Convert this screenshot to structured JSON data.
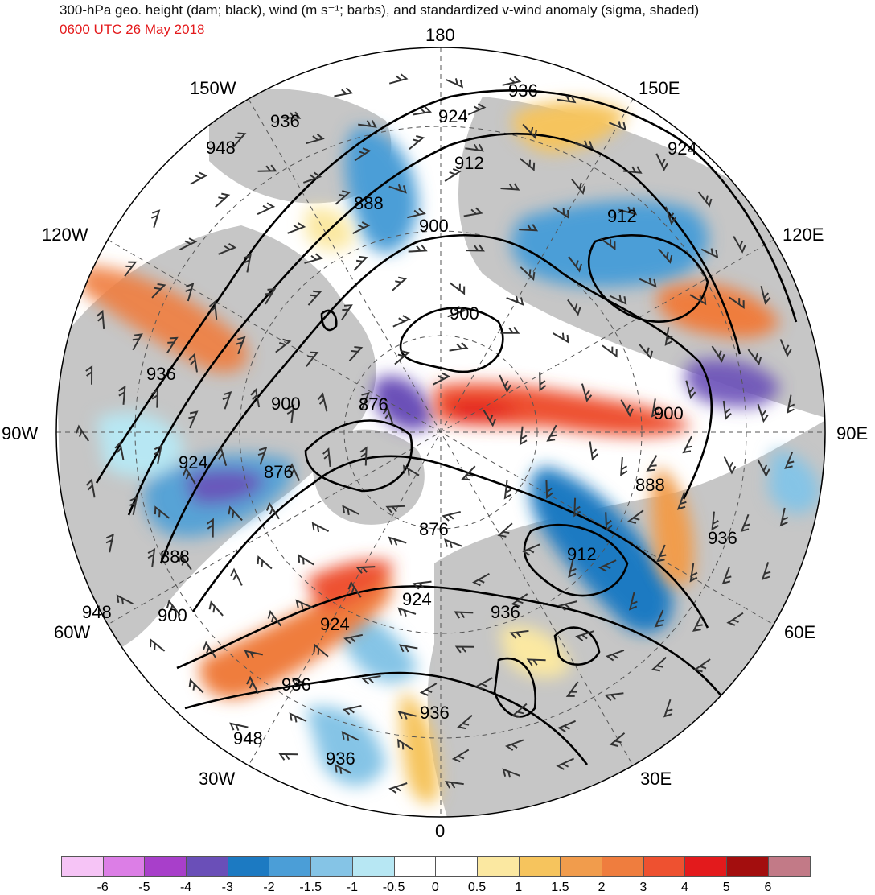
{
  "title": {
    "line1": "300-hPa geo. height (dam; black), wind (m s⁻¹; barbs), and standardized v-wind anomaly (sigma, shaded)",
    "line2": "0600 UTC 26 May 2018"
  },
  "lon_labels": [
    "180",
    "150E",
    "120E",
    "90E",
    "60E",
    "30E",
    "0",
    "30W",
    "60W",
    "90W",
    "120W",
    "150W"
  ],
  "contour_labels": [
    "936",
    "924",
    "912",
    "900",
    "888",
    "876",
    "948"
  ],
  "colorbar": {
    "colors": [
      "#f6c4f6",
      "#dc7ee6",
      "#a83fca",
      "#6a4fb8",
      "#1c7ac2",
      "#4b9ed7",
      "#85c4e6",
      "#b7e7f3",
      "#ffffff",
      "#ffffff",
      "#fbe8a1",
      "#f6c45d",
      "#f19c4c",
      "#ef7d3e",
      "#ee5130",
      "#e31a1c",
      "#a30e0e",
      "#c27a87"
    ],
    "labels": [
      "-6",
      "-5",
      "-4",
      "-3",
      "-2",
      "-1.5",
      "-1",
      "-0.5",
      "0",
      "0.5",
      "1",
      "1.5",
      "2",
      "3",
      "4",
      "5",
      "6"
    ]
  },
  "colors": {
    "land": "#c8c8c8",
    "ocean": "#ffffff",
    "contour": "#000000",
    "title_date": "#e41a1c"
  }
}
